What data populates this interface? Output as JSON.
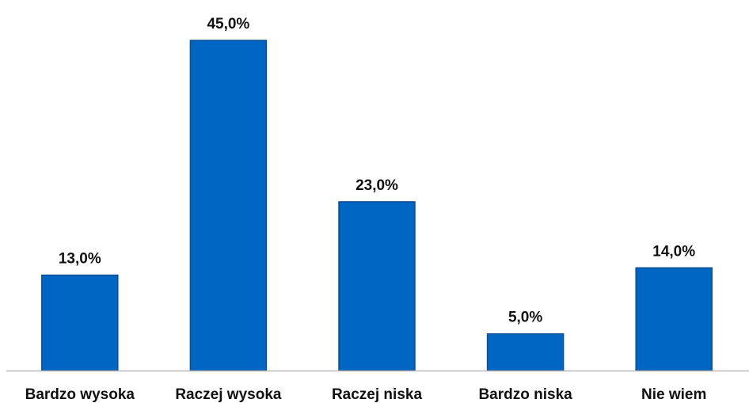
{
  "chart_data": {
    "type": "bar",
    "categories": [
      "Bardzo wysoka",
      "Raczej wysoka",
      "Raczej niska",
      "Bardzo niska",
      "Nie wiem"
    ],
    "values": [
      13.0,
      45.0,
      23.0,
      5.0,
      14.0
    ],
    "value_labels": [
      "13,0%",
      "45,0%",
      "23,0%",
      "5,0%",
      "14,0%"
    ],
    "title": "",
    "xlabel": "",
    "ylabel": "",
    "ylim": [
      0,
      45
    ],
    "grid": false,
    "legend": "none",
    "colors": {
      "bar": "#0066C4",
      "bar_edge": "#0a4f96",
      "axis": "#b8b8b8"
    }
  }
}
